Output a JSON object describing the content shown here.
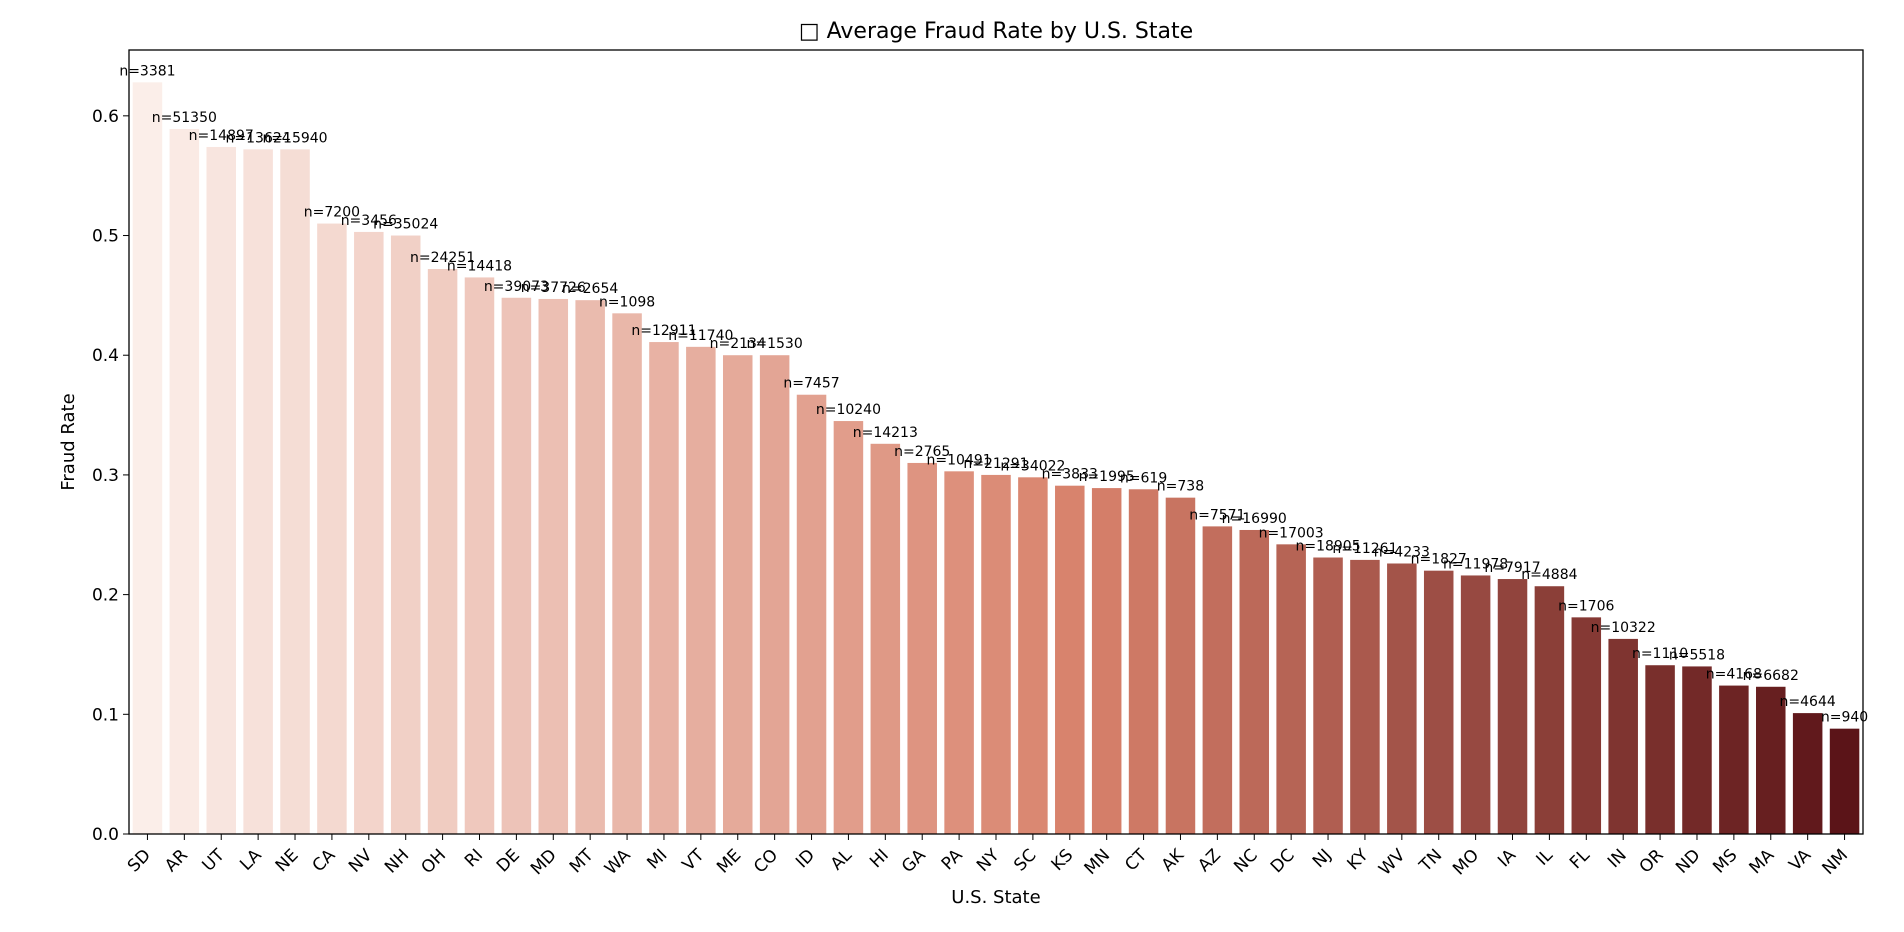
{
  "chart_data": {
    "type": "bar",
    "title": "□ Average Fraud Rate by U.S. State",
    "xlabel": "U.S. State",
    "ylabel": "Fraud Rate",
    "ylim": [
      0,
      0.655
    ],
    "yticks": [
      0.0,
      0.1,
      0.2,
      0.3,
      0.4,
      0.5,
      0.6
    ],
    "grid": false,
    "colors": {
      "light": "#fbeee9",
      "mid": "#d8826c",
      "dark": "#5b1418"
    },
    "categories": [
      "SD",
      "AR",
      "UT",
      "LA",
      "NE",
      "CA",
      "NV",
      "NH",
      "OH",
      "RI",
      "DE",
      "MD",
      "MT",
      "WA",
      "MI",
      "VT",
      "ME",
      "CO",
      "ID",
      "AL",
      "HI",
      "GA",
      "PA",
      "NY",
      "SC",
      "KS",
      "MN",
      "CT",
      "AK",
      "AZ",
      "NC",
      "DC",
      "NJ",
      "KY",
      "WV",
      "TN",
      "MO",
      "IA",
      "IL",
      "FL",
      "IN",
      "OR",
      "ND",
      "MS",
      "MA",
      "VA",
      "NM"
    ],
    "values": [
      0.628,
      0.589,
      0.574,
      0.572,
      0.572,
      0.51,
      0.503,
      0.5,
      0.472,
      0.465,
      0.448,
      0.447,
      0.446,
      0.435,
      0.411,
      0.407,
      0.4,
      0.4,
      0.367,
      0.345,
      0.326,
      0.31,
      0.303,
      0.3,
      0.298,
      0.291,
      0.289,
      0.288,
      0.281,
      0.257,
      0.254,
      0.242,
      0.231,
      0.229,
      0.226,
      0.22,
      0.216,
      0.213,
      0.207,
      0.181,
      0.163,
      0.141,
      0.14,
      0.124,
      0.123,
      0.101,
      0.088
    ],
    "labels": [
      "n=3381",
      "n=51350",
      "n=14897",
      "n=13624",
      "n=15940",
      "n=7200",
      "n=3456",
      "n=35024",
      "n=24251",
      "n=14418",
      "n=39073",
      "n=37726",
      "n=2654",
      "n=1098",
      "n=12911",
      "n=11740",
      "n=2134",
      "n=1530",
      "n=7457",
      "n=10240",
      "n=14213",
      "n=2765",
      "n=10491",
      "n=21291",
      "n=34022",
      "n=3833",
      "n=1995",
      "n=619",
      "n=738",
      "n=7571",
      "n=16990",
      "n=17003",
      "n=18905",
      "n=11261",
      "n=4233",
      "n=1827",
      "n=11978",
      "n=7917",
      "n=4884",
      "n=1706",
      "n=10322",
      "n=1110",
      "n=5518",
      "n=4168",
      "n=6682",
      "n=4644",
      "n=940"
    ]
  }
}
